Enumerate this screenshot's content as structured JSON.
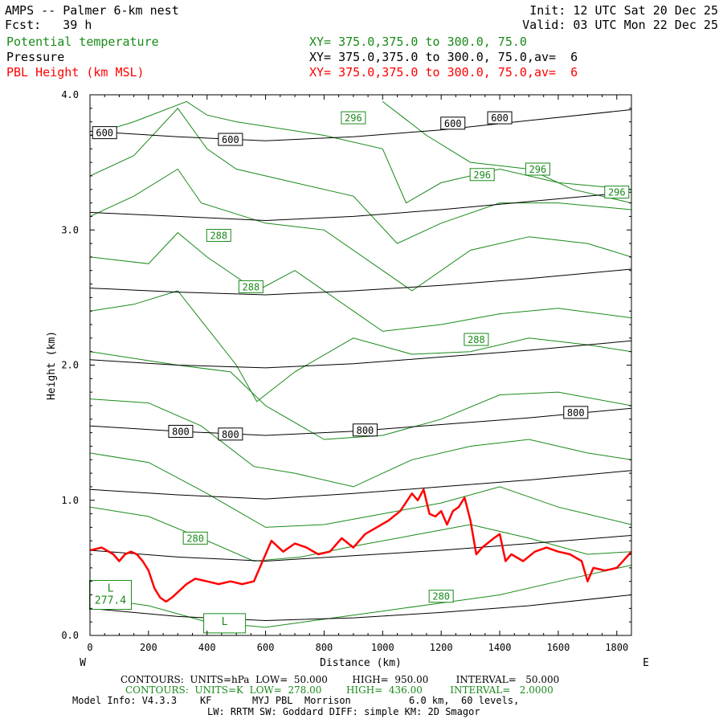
{
  "header": {
    "title": "AMPS -- Palmer 6-km nest",
    "fcst": "Fcst:   39 h",
    "init": "Init: 12 UTC Sat 20 Dec 25",
    "valid": "Valid: 03 UTC Mon 22 Dec 25",
    "field1_name": "Potential temperature",
    "field1_xy": "XY= 375.0,375.0 to 300.0, 75.0",
    "field2_name": "Pressure",
    "field2_xy": "XY= 375.0,375.0 to 300.0, 75.0,av=  6",
    "field3_name": "PBL Height (km MSL)",
    "field3_xy": "XY= 375.0,375.0 to 300.0, 75.0,av=  6"
  },
  "colors": {
    "theta": "#1a8a1a",
    "pressure": "#000000",
    "pbl": "#ff0000"
  },
  "footer": {
    "line1": "CONTOURS:  UNITS=hPa  LOW=  50.000        HIGH=  950.00         INTERVAL=   50.000",
    "line2": "CONTOURS:  UNITS=K  LOW=  278.00        HIGH=  436.00         INTERVAL=   2.0000",
    "line3": "Model Info: V4.3.3    KF       MYJ PBL  Morrison          6.0 km,  60 levels,",
    "line4": "LW: RRTM SW: Goddard DIFF: simple KM: 2D Smagor"
  },
  "chart_data": {
    "type": "line",
    "xlabel": "Distance (km)",
    "ylabel": "Height (km)",
    "xlim": [
      0,
      1850
    ],
    "ylim": [
      0,
      4.0
    ],
    "x_ticks": [
      "0",
      "200",
      "400",
      "600",
      "800",
      "1000",
      "1200",
      "1400",
      "1600",
      "1800"
    ],
    "y_ticks": [
      "0.0",
      "1.0",
      "2.0",
      "3.0",
      "4.0"
    ],
    "x_ends": {
      "left": "W",
      "right": "E"
    },
    "pressure_contours": [
      {
        "x": [
          0,
          300,
          600,
          900,
          1200,
          1500,
          1850
        ],
        "y": [
          0.2,
          0.14,
          0.11,
          0.13,
          0.17,
          0.22,
          0.3
        ]
      },
      {
        "x": [
          0,
          300,
          600,
          900,
          1200,
          1500,
          1850
        ],
        "y": [
          0.63,
          0.58,
          0.55,
          0.59,
          0.63,
          0.68,
          0.74
        ]
      },
      {
        "x": [
          0,
          300,
          600,
          900,
          1200,
          1500,
          1850
        ],
        "y": [
          1.08,
          1.04,
          1.01,
          1.05,
          1.1,
          1.15,
          1.22
        ]
      },
      {
        "x": [
          0,
          300,
          600,
          900,
          1200,
          1500,
          1850
        ],
        "y": [
          1.55,
          1.51,
          1.48,
          1.51,
          1.56,
          1.61,
          1.68
        ]
      },
      {
        "x": [
          0,
          300,
          600,
          900,
          1200,
          1500,
          1850
        ],
        "y": [
          2.04,
          2.0,
          1.98,
          2.01,
          2.06,
          2.11,
          2.18
        ]
      },
      {
        "x": [
          0,
          300,
          600,
          900,
          1200,
          1500,
          1850
        ],
        "y": [
          2.57,
          2.54,
          2.52,
          2.55,
          2.59,
          2.64,
          2.71
        ]
      },
      {
        "x": [
          0,
          300,
          600,
          900,
          1200,
          1500,
          1850
        ],
        "y": [
          3.13,
          3.1,
          3.07,
          3.1,
          3.15,
          3.21,
          3.28
        ]
      },
      {
        "x": [
          0,
          300,
          600,
          900,
          1200,
          1500,
          1850
        ],
        "y": [
          3.73,
          3.69,
          3.66,
          3.69,
          3.74,
          3.81,
          3.89
        ]
      }
    ],
    "pressure_labels": [
      {
        "text": "600",
        "x": 50,
        "y": 3.72
      },
      {
        "text": "600",
        "x": 480,
        "y": 3.67
      },
      {
        "text": "600",
        "x": 1240,
        "y": 3.79
      },
      {
        "text": "600",
        "x": 1400,
        "y": 3.83
      },
      {
        "text": "800",
        "x": 310,
        "y": 1.51
      },
      {
        "text": "800",
        "x": 480,
        "y": 1.49
      },
      {
        "text": "800",
        "x": 940,
        "y": 1.52
      },
      {
        "text": "800",
        "x": 1660,
        "y": 1.65
      }
    ],
    "theta_contours": [
      {
        "x": [
          0,
          200,
          400,
          600,
          800,
          1000,
          1200,
          1400,
          1600,
          1850
        ],
        "y": [
          0.28,
          0.22,
          0.1,
          0.06,
          0.12,
          0.18,
          0.24,
          0.3,
          0.4,
          0.52
        ]
      },
      {
        "x": [
          0,
          200,
          380,
          560,
          720,
          900,
          1100,
          1300,
          1500,
          1700,
          1850
        ],
        "y": [
          0.95,
          0.88,
          0.72,
          0.55,
          0.58,
          0.66,
          0.74,
          0.82,
          0.72,
          0.6,
          0.62
        ]
      },
      {
        "x": [
          0,
          200,
          400,
          600,
          800,
          1000,
          1200,
          1400,
          1600,
          1850
        ],
        "y": [
          1.35,
          1.28,
          1.05,
          0.8,
          0.82,
          0.9,
          0.98,
          1.1,
          0.95,
          0.82
        ]
      },
      {
        "x": [
          0,
          200,
          380,
          560,
          700,
          900,
          1100,
          1300,
          1500,
          1700,
          1850
        ],
        "y": [
          1.75,
          1.72,
          1.55,
          1.25,
          1.2,
          1.1,
          1.3,
          1.4,
          1.45,
          1.35,
          1.3
        ]
      },
      {
        "x": [
          0,
          150,
          300,
          480,
          600,
          800,
          1000,
          1200,
          1400,
          1600,
          1850
        ],
        "y": [
          2.1,
          2.05,
          2.0,
          1.95,
          1.7,
          1.45,
          1.48,
          1.6,
          1.78,
          1.8,
          1.7
        ]
      },
      {
        "x": [
          0,
          150,
          300,
          500,
          570,
          700,
          900,
          1100,
          1300,
          1500,
          1700,
          1850
        ],
        "y": [
          2.4,
          2.45,
          2.55,
          2.0,
          1.73,
          1.95,
          2.2,
          2.08,
          2.1,
          2.2,
          2.15,
          2.1
        ]
      },
      {
        "x": [
          0,
          200,
          300,
          400,
          570,
          700,
          900,
          1000,
          1200,
          1400,
          1600,
          1850
        ],
        "y": [
          2.8,
          2.75,
          2.98,
          2.8,
          2.55,
          2.7,
          2.4,
          2.25,
          2.3,
          2.38,
          2.42,
          2.35
        ]
      },
      {
        "x": [
          0,
          150,
          300,
          380,
          600,
          800,
          1000,
          1100,
          1300,
          1500,
          1700,
          1850
        ],
        "y": [
          3.1,
          3.25,
          3.45,
          3.2,
          3.05,
          3.0,
          2.7,
          2.55,
          2.85,
          2.95,
          2.9,
          2.8
        ]
      },
      {
        "x": [
          0,
          150,
          300,
          400,
          500,
          700,
          900,
          1050,
          1200,
          1400,
          1600,
          1850
        ],
        "y": [
          3.4,
          3.55,
          3.9,
          3.6,
          3.45,
          3.35,
          3.25,
          2.9,
          3.05,
          3.2,
          3.2,
          3.15
        ]
      },
      {
        "x": [
          0,
          150,
          330,
          400,
          500,
          800,
          1000,
          1080,
          1200,
          1400,
          1600,
          1850
        ],
        "y": [
          3.7,
          3.8,
          3.95,
          3.85,
          3.8,
          3.7,
          3.6,
          3.2,
          3.35,
          3.45,
          3.35,
          3.3
        ]
      },
      {
        "x": [
          1000,
          1150,
          1300,
          1500,
          1650,
          1850
        ],
        "y": [
          3.95,
          3.7,
          3.5,
          3.45,
          3.3,
          3.2
        ]
      }
    ],
    "theta_labels": [
      {
        "text": "296",
        "x": 900,
        "y": 3.83
      },
      {
        "text": "296",
        "x": 1340,
        "y": 3.41
      },
      {
        "text": "296",
        "x": 1530,
        "y": 3.45
      },
      {
        "text": "296",
        "x": 1800,
        "y": 3.28
      },
      {
        "text": "288",
        "x": 440,
        "y": 2.96
      },
      {
        "text": "288",
        "x": 550,
        "y": 2.58
      },
      {
        "text": "288",
        "x": 1320,
        "y": 2.19
      },
      {
        "text": "280",
        "x": 360,
        "y": 0.72
      },
      {
        "text": "280",
        "x": 1200,
        "y": 0.29
      }
    ],
    "extrema_labels": [
      {
        "text": "L",
        "value": "277.4",
        "x": 70,
        "y": 0.3
      },
      {
        "text": "L",
        "value": "",
        "x": 460,
        "y": 0.09
      }
    ],
    "pbl_height": {
      "name": "PBL Height (km MSL)",
      "x": [
        0,
        40,
        80,
        100,
        120,
        140,
        160,
        180,
        200,
        220,
        240,
        260,
        280,
        300,
        330,
        360,
        400,
        440,
        480,
        520,
        560,
        600,
        620,
        660,
        700,
        740,
        780,
        820,
        860,
        900,
        940,
        980,
        1020,
        1060,
        1100,
        1120,
        1140,
        1160,
        1180,
        1200,
        1220,
        1240,
        1260,
        1280,
        1300,
        1320,
        1340,
        1380,
        1400,
        1420,
        1440,
        1480,
        1520,
        1560,
        1600,
        1640,
        1680,
        1700,
        1720,
        1760,
        1800,
        1850
      ],
      "y": [
        0.63,
        0.65,
        0.6,
        0.55,
        0.6,
        0.62,
        0.6,
        0.55,
        0.48,
        0.35,
        0.28,
        0.25,
        0.28,
        0.32,
        0.38,
        0.42,
        0.4,
        0.38,
        0.4,
        0.38,
        0.4,
        0.6,
        0.7,
        0.62,
        0.68,
        0.65,
        0.6,
        0.62,
        0.72,
        0.65,
        0.75,
        0.8,
        0.85,
        0.92,
        1.05,
        1.0,
        1.08,
        0.9,
        0.88,
        0.92,
        0.82,
        0.92,
        0.95,
        1.02,
        0.85,
        0.6,
        0.65,
        0.72,
        0.75,
        0.55,
        0.6,
        0.55,
        0.62,
        0.65,
        0.62,
        0.6,
        0.55,
        0.4,
        0.5,
        0.48,
        0.5,
        0.62
      ]
    }
  }
}
